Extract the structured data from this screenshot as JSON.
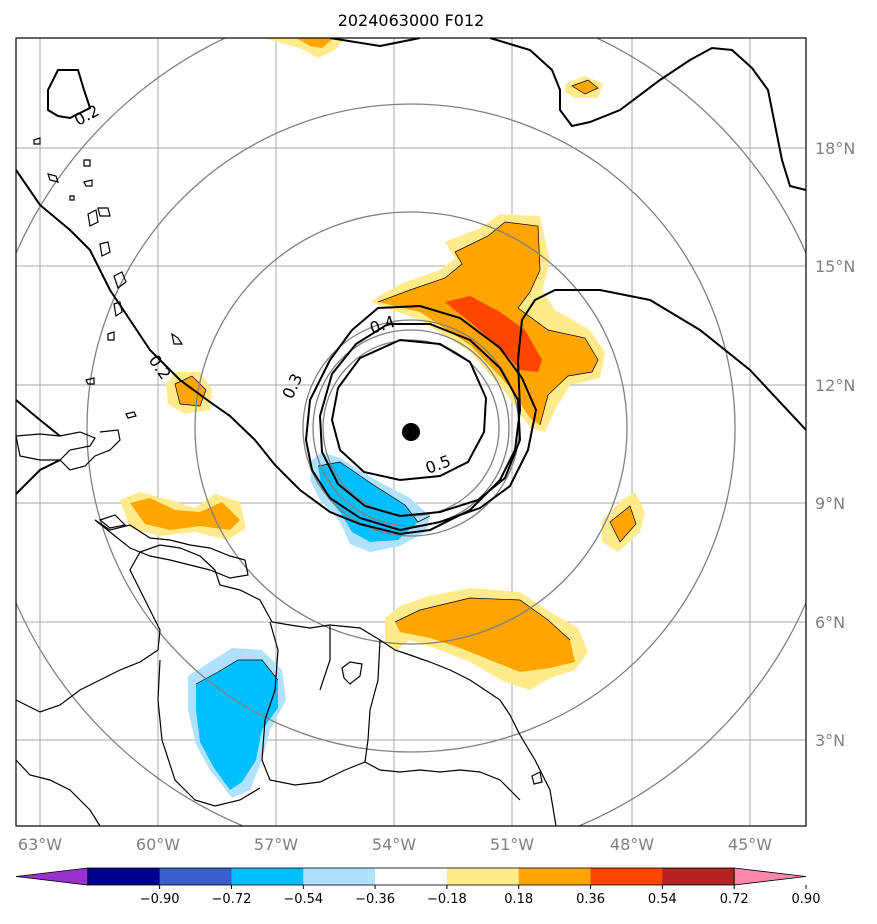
{
  "title": "2024063000 F012",
  "lon_labels": [
    "63°W",
    "60°W",
    "57°W",
    "54°W",
    "51°W",
    "48°W",
    "45°W"
  ],
  "lat_labels": [
    "18°N",
    "15°N",
    "12°N",
    "9°N",
    "6°N",
    "3°N"
  ],
  "contour_labels": [
    "0.2",
    "0.2",
    "0.3",
    "0.4",
    "0.5"
  ],
  "colorbar": {
    "tick_labels": [
      "−0.90",
      "−0.72",
      "−0.54",
      "−0.36",
      "−0.18",
      "0.18",
      "0.36",
      "0.54",
      "0.72",
      "0.90"
    ],
    "colors": [
      "#9932cc",
      "#00008b",
      "#3a5fcd",
      "#00bfff",
      "#b0e2ff",
      "#ffffff",
      "#ffea8c",
      "#ffa500",
      "#ff4500",
      "#b22222",
      "#ff88aa"
    ]
  },
  "colors": {
    "grid": "#aaaaaa",
    "range_rings": "#808080",
    "coast": "#000000",
    "center_marker": "#000000"
  }
}
